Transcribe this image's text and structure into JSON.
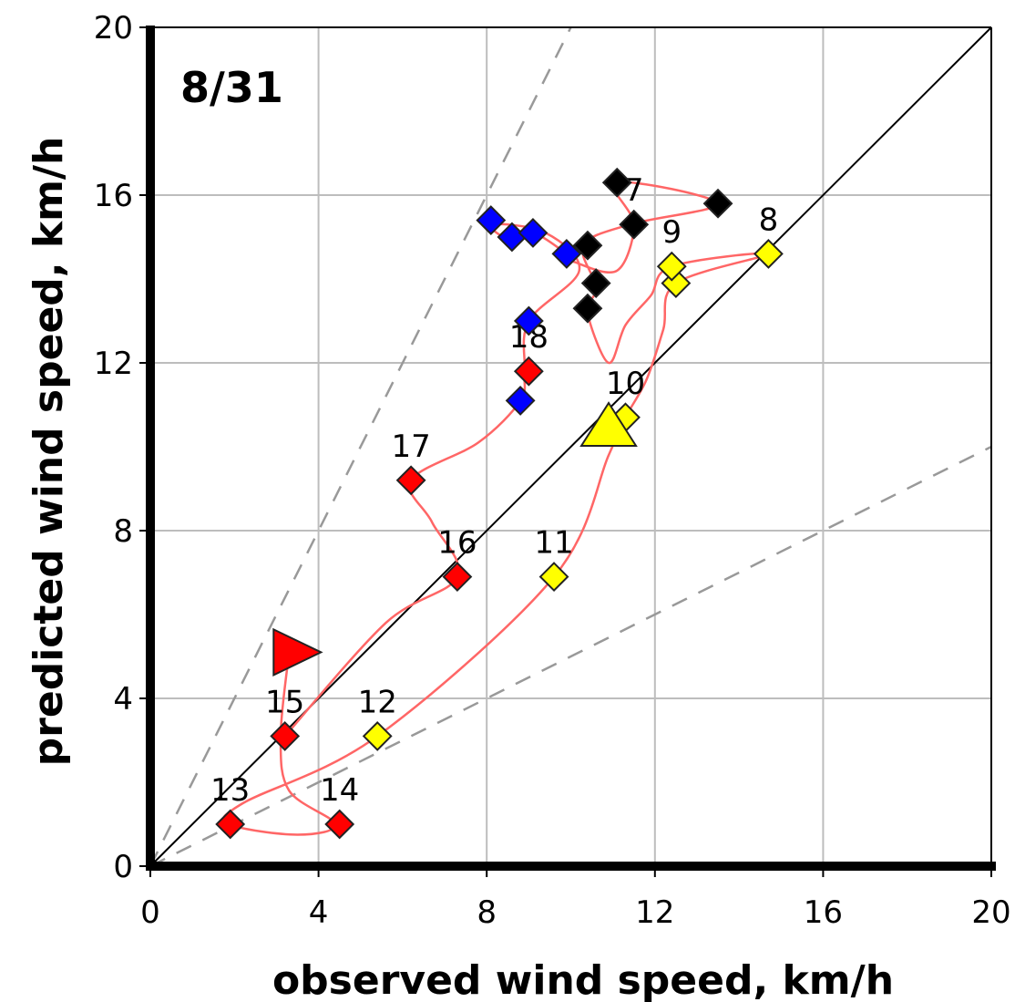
{
  "chart_data": {
    "type": "scatter",
    "title": "",
    "panel_label": "8/31",
    "xlabel": "observed wind speed, km/h",
    "ylabel": "predicted wind speed, km/h",
    "xlim": [
      0,
      20
    ],
    "ylim": [
      0,
      20
    ],
    "xticks": [
      0,
      4,
      8,
      12,
      16,
      20
    ],
    "yticks": [
      0,
      4,
      8,
      12,
      16,
      20
    ],
    "grid": true,
    "legend": "none",
    "reference_lines": [
      {
        "name": "1:1",
        "style": "solid",
        "color": "#000000",
        "slope": 1
      },
      {
        "name": "2:1",
        "style": "dashed",
        "color": "#999999",
        "slope": 2
      },
      {
        "name": "1:2",
        "style": "dashed",
        "color": "#999999",
        "slope": 0.5
      }
    ],
    "trajectory": {
      "color": "#ff6666",
      "points": [
        [
          3.3,
          5.1
        ],
        [
          3.1,
          3.1
        ],
        [
          3.3,
          1.8
        ],
        [
          4.4,
          1.0
        ],
        [
          3.5,
          0.75
        ],
        [
          1.9,
          1.0
        ],
        [
          2.2,
          1.5
        ],
        [
          5.4,
          3.1
        ],
        [
          9.6,
          6.9
        ],
        [
          10.9,
          9.8
        ],
        [
          11.3,
          10.7
        ],
        [
          11.8,
          11.6
        ],
        [
          12.2,
          12.8
        ],
        [
          12.5,
          13.9
        ],
        [
          14.7,
          14.6
        ],
        [
          12.4,
          14.3
        ],
        [
          11.9,
          13.6
        ],
        [
          11.3,
          12.9
        ],
        [
          10.9,
          12.0
        ],
        [
          10.4,
          13.2
        ],
        [
          10.6,
          13.8
        ],
        [
          10.3,
          14.8
        ],
        [
          11.4,
          15.3
        ],
        [
          13.5,
          15.8
        ],
        [
          11.1,
          16.3
        ],
        [
          11.5,
          15.3
        ],
        [
          11.1,
          14.2
        ],
        [
          10.1,
          14.4
        ],
        [
          9.9,
          14.6
        ],
        [
          9.1,
          15.1
        ],
        [
          8.6,
          14.9
        ],
        [
          8.1,
          15.3
        ],
        [
          9.4,
          15.1
        ],
        [
          10.2,
          14.2
        ],
        [
          9.0,
          13.0
        ],
        [
          8.9,
          11.8
        ],
        [
          8.8,
          11.1
        ],
        [
          7.8,
          10.1
        ],
        [
          6.2,
          9.2
        ],
        [
          6.7,
          8.2
        ],
        [
          7.3,
          6.9
        ],
        [
          5.6,
          5.8
        ],
        [
          3.2,
          3.1
        ]
      ]
    },
    "series": [
      {
        "name": "",
        "color": "#ff0000",
        "marker": "diamond",
        "x": [
          1.9,
          4.5,
          3.2,
          7.3,
          6.2,
          9.0
        ],
        "y": [
          1.0,
          1.0,
          3.1,
          6.9,
          9.2,
          11.8
        ],
        "labels": [
          "13",
          "14",
          "15",
          "16",
          "17",
          "18"
        ]
      },
      {
        "name": "",
        "color": "#ffff00",
        "marker": "diamond",
        "x": [
          5.4,
          9.6,
          11.3,
          12.5,
          12.4,
          14.7
        ],
        "y": [
          3.1,
          6.9,
          10.7,
          13.9,
          14.3,
          14.6
        ],
        "labels": [
          "12",
          "11",
          "10",
          "",
          "9",
          "8"
        ]
      },
      {
        "name": "",
        "color": "#000000",
        "marker": "diamond",
        "x": [
          10.4,
          10.6,
          10.4,
          11.5,
          13.5,
          11.1
        ],
        "y": [
          13.3,
          13.9,
          14.8,
          15.3,
          15.8,
          16.3
        ],
        "labels": [
          "",
          "",
          "",
          "7",
          "",
          ""
        ]
      },
      {
        "name": "",
        "color": "#0000ff",
        "marker": "diamond",
        "x": [
          8.8,
          9.0,
          9.9,
          8.6,
          8.1,
          9.1
        ],
        "y": [
          11.1,
          13.0,
          14.6,
          15.0,
          15.4,
          15.1
        ],
        "labels": [
          "",
          "",
          "",
          "",
          "",
          ""
        ]
      }
    ],
    "markers": [
      {
        "name": "",
        "color": "#ff0000",
        "shape": "triangle-right",
        "x": 3.3,
        "y": 5.1
      },
      {
        "name": "",
        "color": "#ffff00",
        "shape": "triangle-up",
        "x": 10.9,
        "y": 10.5
      }
    ]
  }
}
